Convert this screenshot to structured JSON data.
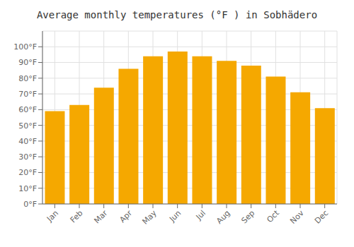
{
  "chart_data": {
    "type": "bar",
    "title": "Average monthly temperatures (°F ) in Sobhädero",
    "categories": [
      "Jan",
      "Feb",
      "Mar",
      "Apr",
      "May",
      "Jun",
      "Jul",
      "Aug",
      "Sep",
      "Oct",
      "Nov",
      "Dec"
    ],
    "values": [
      59,
      63,
      74,
      86,
      94,
      97,
      94,
      91,
      88,
      81,
      71,
      61
    ],
    "color": "#F5A800",
    "ylim": [
      0,
      110
    ],
    "yticks": [
      {
        "value": 0,
        "label": "0°F"
      },
      {
        "value": 10,
        "label": "10°F"
      },
      {
        "value": 20,
        "label": "20°F"
      },
      {
        "value": 30,
        "label": "30°F"
      },
      {
        "value": 40,
        "label": "40°F"
      },
      {
        "value": 50,
        "label": "50°F"
      },
      {
        "value": 60,
        "label": "60°F"
      },
      {
        "value": 70,
        "label": "70°F"
      },
      {
        "value": 80,
        "label": "80°F"
      },
      {
        "value": 90,
        "label": "90°F"
      },
      {
        "value": 100,
        "label": "100°F"
      }
    ],
    "grid": true
  }
}
